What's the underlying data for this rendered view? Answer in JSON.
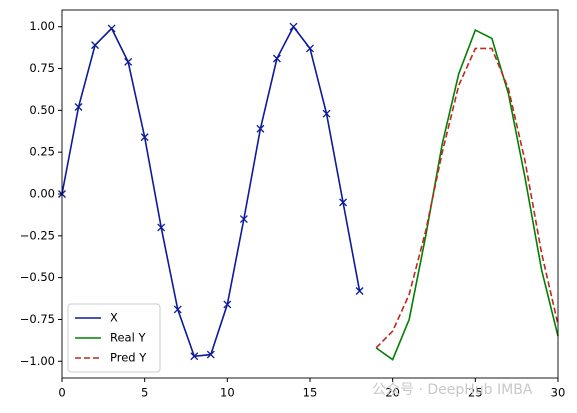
{
  "chart_data": {
    "type": "line",
    "series": [
      {
        "name": "X",
        "color": "#0c1a9c",
        "dash": false,
        "marker": "x",
        "x": [
          0,
          1,
          2,
          3,
          4,
          5,
          6,
          7,
          8,
          9,
          10,
          11,
          12,
          13,
          14,
          15,
          16,
          17,
          18
        ],
        "values": [
          0.0,
          0.52,
          0.89,
          0.99,
          0.79,
          0.34,
          -0.2,
          -0.69,
          -0.97,
          -0.96,
          -0.66,
          -0.15,
          0.39,
          0.81,
          1.0,
          0.87,
          0.48,
          -0.05,
          -0.58
        ]
      },
      {
        "name": "Real Y",
        "color": "#008000",
        "dash": false,
        "x": [
          19,
          20,
          21,
          22,
          23,
          24,
          25,
          26,
          27,
          28,
          29,
          30
        ],
        "values": [
          -0.92,
          -0.99,
          -0.75,
          -0.25,
          0.3,
          0.72,
          0.98,
          0.93,
          0.6,
          0.1,
          -0.45,
          -0.85
        ]
      },
      {
        "name": "Pred Y",
        "color": "#c0281e",
        "dash": true,
        "x": [
          19,
          20,
          21,
          22,
          23,
          24,
          25,
          26,
          27,
          28,
          29,
          30
        ],
        "values": [
          -0.92,
          -0.82,
          -0.6,
          -0.22,
          0.25,
          0.65,
          0.87,
          0.87,
          0.63,
          0.2,
          -0.35,
          -0.78
        ]
      }
    ],
    "xlim": [
      0,
      30
    ],
    "xticks": [
      0,
      5,
      10,
      15,
      20,
      25,
      30
    ],
    "ylim": [
      -1.1,
      1.1
    ],
    "yticks": [
      {
        "value": -1,
        "label": "−1.00"
      },
      {
        "value": -0.75,
        "label": "−0.75"
      },
      {
        "value": -0.5,
        "label": "−0.50"
      },
      {
        "value": -0.25,
        "label": "−0.25"
      },
      {
        "value": 0,
        "label": "0.00"
      },
      {
        "value": 0.25,
        "label": "0.25"
      },
      {
        "value": 0.5,
        "label": "0.50"
      },
      {
        "value": 0.75,
        "label": "0.75"
      },
      {
        "value": 1,
        "label": "1.00"
      }
    ],
    "legend": "lower left",
    "watermark": "公众号 · DeepHub IMBA"
  }
}
